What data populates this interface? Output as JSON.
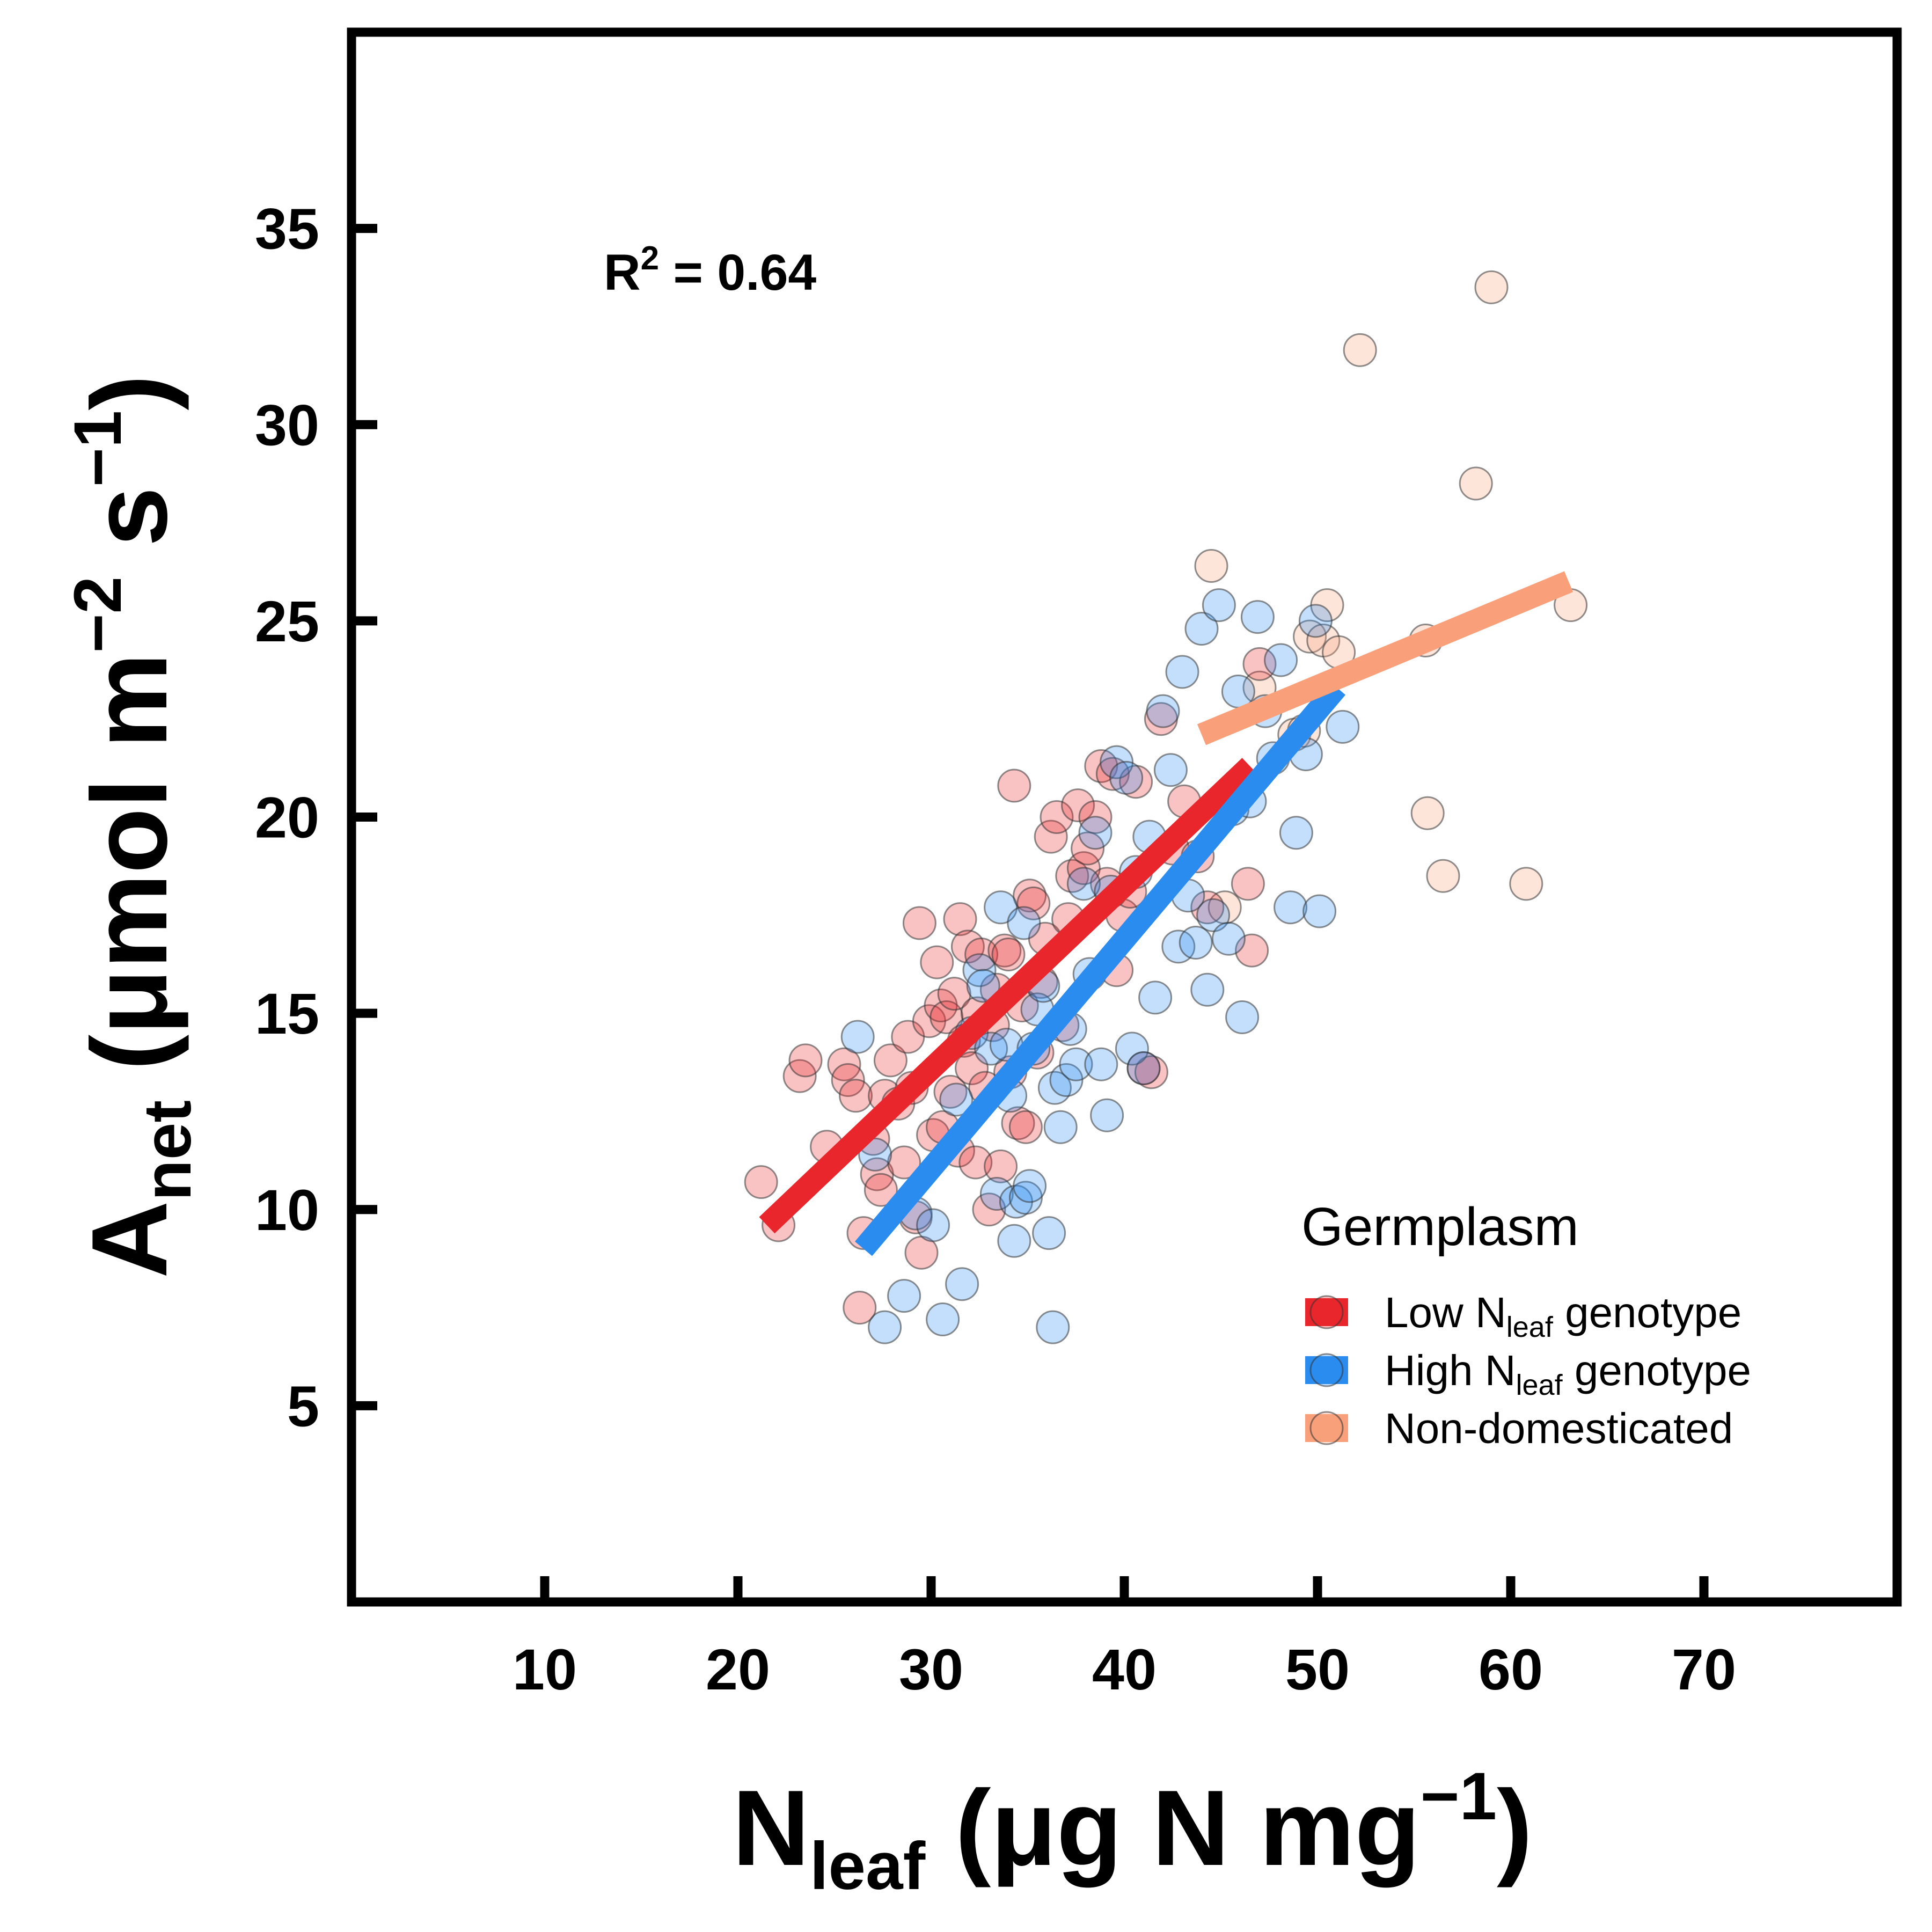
{
  "chart_data": {
    "type": "scatter",
    "xlabel": {
      "main": "N",
      "sub": "leaf",
      "rest": " (μg N mg",
      "sup": "−1",
      "close": ")"
    },
    "ylabel": {
      "main": "A",
      "sub": "net",
      "rest": " (μmol m",
      "sup1": "−2",
      "mid": " s",
      "sup2": "−1",
      "close": ")"
    },
    "xlim": [
      0,
      80
    ],
    "ylim": [
      0,
      40
    ],
    "xticks": [
      10,
      20,
      30,
      40,
      50,
      60,
      70
    ],
    "yticks": [
      5,
      10,
      15,
      20,
      25,
      30,
      35
    ],
    "grid": false,
    "legend_position": "bottom-right",
    "annotation": {
      "text": "R",
      "sup": "2",
      "rest": " = 0.64"
    },
    "legend_title": "Germplasm",
    "series": [
      {
        "name": "Low Nleaf genotype",
        "label": {
          "main": "Low N",
          "sub": "leaf",
          "rest": " genotype"
        },
        "color": "#e8262b",
        "line": [
          [
            21.5,
            9.6
          ],
          [
            46.5,
            21.3
          ]
        ],
        "points": [
          [
            21.2,
            10.7
          ],
          [
            22.1,
            9.6
          ],
          [
            23.2,
            13.4
          ],
          [
            23.5,
            13.8
          ],
          [
            24.6,
            11.6
          ],
          [
            25.5,
            13.7
          ],
          [
            25.7,
            13.3
          ],
          [
            26.1,
            12.9
          ],
          [
            26.5,
            9.4
          ],
          [
            26.3,
            7.5
          ],
          [
            27.0,
            11.8
          ],
          [
            27.2,
            10.9
          ],
          [
            27.4,
            10.5
          ],
          [
            27.6,
            12.9
          ],
          [
            27.9,
            13.8
          ],
          [
            28.3,
            12.7
          ],
          [
            28.6,
            11.2
          ],
          [
            28.8,
            14.4
          ],
          [
            29.0,
            13.1
          ],
          [
            29.2,
            9.8
          ],
          [
            29.4,
            17.3
          ],
          [
            29.5,
            8.9
          ],
          [
            29.9,
            14.8
          ],
          [
            30.1,
            11.9
          ],
          [
            30.3,
            16.3
          ],
          [
            30.5,
            15.2
          ],
          [
            30.6,
            12.1
          ],
          [
            30.8,
            14.9
          ],
          [
            31.0,
            13.0
          ],
          [
            31.2,
            15.5
          ],
          [
            31.4,
            11.5
          ],
          [
            31.5,
            17.4
          ],
          [
            31.7,
            14.3
          ],
          [
            31.9,
            16.7
          ],
          [
            32.1,
            13.6
          ],
          [
            32.3,
            11.2
          ],
          [
            32.4,
            15.0
          ],
          [
            32.6,
            16.5
          ],
          [
            32.8,
            13.1
          ],
          [
            33.0,
            10.0
          ],
          [
            33.2,
            14.7
          ],
          [
            33.4,
            15.6
          ],
          [
            33.6,
            11.1
          ],
          [
            33.8,
            16.6
          ],
          [
            34.0,
            16.5
          ],
          [
            34.1,
            13.5
          ],
          [
            34.3,
            20.8
          ],
          [
            34.5,
            12.2
          ],
          [
            34.7,
            15.2
          ],
          [
            34.9,
            12.1
          ],
          [
            35.1,
            18.0
          ],
          [
            35.3,
            17.8
          ],
          [
            35.5,
            14.0
          ],
          [
            35.7,
            15.8
          ],
          [
            35.9,
            16.9
          ],
          [
            36.2,
            19.5
          ],
          [
            36.5,
            20.0
          ],
          [
            36.8,
            14.7
          ],
          [
            37.1,
            17.4
          ],
          [
            37.3,
            18.5
          ],
          [
            37.6,
            20.3
          ],
          [
            37.9,
            18.7
          ],
          [
            38.1,
            19.2
          ],
          [
            38.5,
            20.0
          ],
          [
            38.8,
            21.3
          ],
          [
            39.1,
            18.3
          ],
          [
            39.4,
            21.1
          ],
          [
            39.6,
            16.1
          ],
          [
            39.9,
            17.5
          ],
          [
            40.3,
            18.1
          ],
          [
            40.6,
            20.9
          ],
          [
            41.0,
            13.6
          ],
          [
            41.4,
            13.5
          ],
          [
            41.9,
            22.5
          ],
          [
            42.5,
            19.2
          ],
          [
            43.1,
            20.4
          ],
          [
            43.8,
            19.0
          ],
          [
            44.3,
            17.7
          ],
          [
            46.4,
            18.3
          ],
          [
            46.6,
            16.6
          ],
          [
            47.0,
            23.9
          ]
        ]
      },
      {
        "name": "High Nleaf genotype",
        "label": {
          "main": "High N",
          "sub": "leaf",
          "rest": " genotype"
        },
        "color": "#2b8cf0",
        "line": [
          [
            26.5,
            9.0
          ],
          [
            51.0,
            23.3
          ]
        ],
        "points": [
          [
            26.2,
            14.4
          ],
          [
            27.1,
            11.4
          ],
          [
            27.6,
            7.0
          ],
          [
            28.6,
            7.8
          ],
          [
            29.2,
            9.9
          ],
          [
            30.1,
            9.6
          ],
          [
            30.6,
            7.2
          ],
          [
            31.3,
            12.8
          ],
          [
            31.6,
            8.1
          ],
          [
            32.1,
            14.5
          ],
          [
            32.5,
            16.1
          ],
          [
            32.7,
            15.7
          ],
          [
            33.1,
            14.1
          ],
          [
            33.4,
            10.4
          ],
          [
            33.6,
            17.7
          ],
          [
            33.9,
            14.2
          ],
          [
            34.1,
            12.9
          ],
          [
            34.3,
            9.2
          ],
          [
            34.4,
            10.2
          ],
          [
            34.8,
            17.3
          ],
          [
            34.9,
            10.3
          ],
          [
            35.1,
            10.6
          ],
          [
            35.3,
            14.1
          ],
          [
            35.5,
            15.1
          ],
          [
            35.8,
            15.7
          ],
          [
            36.1,
            9.4
          ],
          [
            36.3,
            7.0
          ],
          [
            36.4,
            13.1
          ],
          [
            36.7,
            12.1
          ],
          [
            37.0,
            13.3
          ],
          [
            37.2,
            14.6
          ],
          [
            37.5,
            13.7
          ],
          [
            37.9,
            18.3
          ],
          [
            38.2,
            16.0
          ],
          [
            38.5,
            19.6
          ],
          [
            38.8,
            13.7
          ],
          [
            39.1,
            12.4
          ],
          [
            39.3,
            18.1
          ],
          [
            39.6,
            21.4
          ],
          [
            40.1,
            21.0
          ],
          [
            40.4,
            14.1
          ],
          [
            40.6,
            18.6
          ],
          [
            41.0,
            13.6
          ],
          [
            41.3,
            19.5
          ],
          [
            41.6,
            15.4
          ],
          [
            42.0,
            22.7
          ],
          [
            42.4,
            21.2
          ],
          [
            42.8,
            16.7
          ],
          [
            43.0,
            23.7
          ],
          [
            43.3,
            18.0
          ],
          [
            43.7,
            16.8
          ],
          [
            44.0,
            24.8
          ],
          [
            44.3,
            15.6
          ],
          [
            44.6,
            17.5
          ],
          [
            44.9,
            25.4
          ],
          [
            45.4,
            16.9
          ],
          [
            45.6,
            20.2
          ],
          [
            45.9,
            23.2
          ],
          [
            46.1,
            14.9
          ],
          [
            46.5,
            20.4
          ],
          [
            46.9,
            25.1
          ],
          [
            47.3,
            22.7
          ],
          [
            47.7,
            21.5
          ],
          [
            48.1,
            24.0
          ],
          [
            48.6,
            17.7
          ],
          [
            48.9,
            19.6
          ],
          [
            49.4,
            21.6
          ],
          [
            49.9,
            25.0
          ],
          [
            50.1,
            17.6
          ],
          [
            51.3,
            22.3
          ]
        ]
      },
      {
        "name": "Non-domesticated",
        "label": {
          "main": "Non-domesticated",
          "sub": "",
          "rest": ""
        },
        "color": "#f9a07b",
        "line": [
          [
            44.0,
            22.1
          ],
          [
            63.0,
            26.0
          ]
        ],
        "points": [
          [
            44.5,
            26.4
          ],
          [
            45.2,
            17.7
          ],
          [
            47.0,
            23.3
          ],
          [
            48.8,
            22.1
          ],
          [
            49.3,
            22.2
          ],
          [
            49.6,
            24.6
          ],
          [
            50.3,
            24.5
          ],
          [
            50.5,
            25.4
          ],
          [
            51.1,
            24.2
          ],
          [
            52.2,
            31.9
          ],
          [
            55.6,
            24.5
          ],
          [
            55.7,
            20.1
          ],
          [
            56.5,
            18.5
          ],
          [
            58.2,
            28.5
          ],
          [
            59.0,
            33.5
          ],
          [
            60.8,
            18.3
          ],
          [
            63.1,
            25.4
          ]
        ]
      }
    ]
  }
}
